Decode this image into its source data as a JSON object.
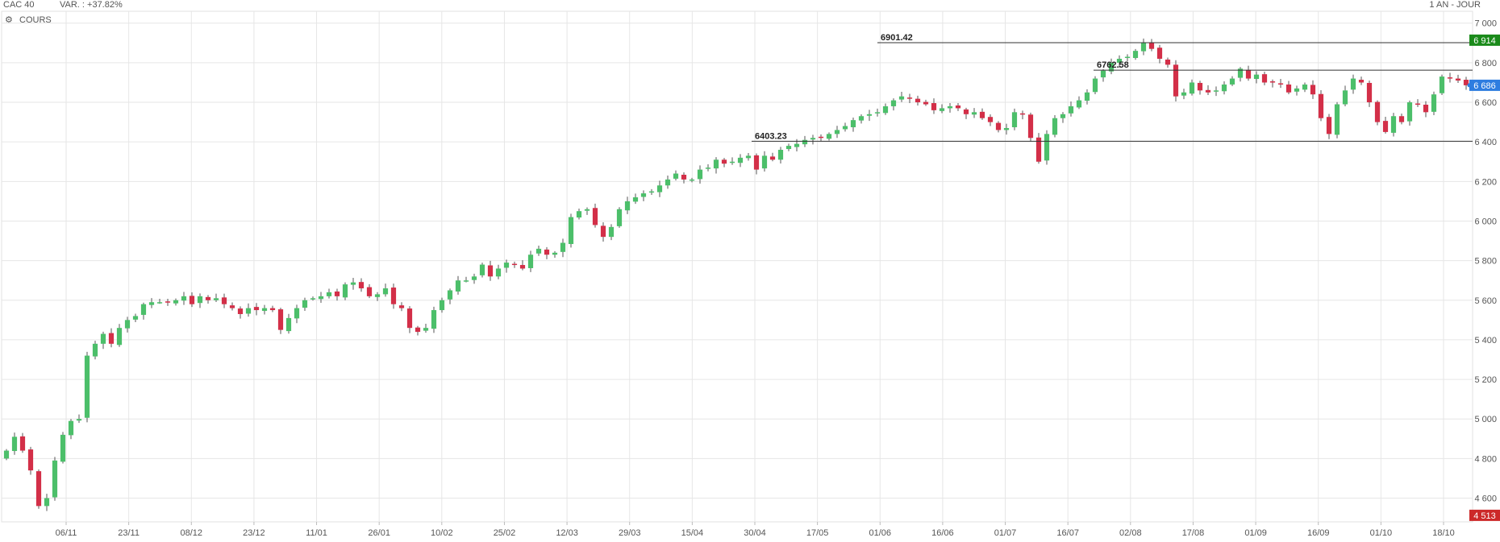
{
  "header": {
    "instrument": "CAC 40",
    "variation": "VAR. : +37.82%",
    "period": "1 AN - JOUR"
  },
  "legend": {
    "label": "COURS",
    "icon": "gear-icon"
  },
  "chart_data": {
    "type": "candlestick",
    "y_range": [
      4480,
      7060
    ],
    "y_ticks": [
      4600,
      4800,
      5000,
      5200,
      5400,
      5600,
      5800,
      6000,
      6200,
      6400,
      6600,
      6800,
      7000
    ],
    "y_tick_labels": [
      "4 600",
      "4 800",
      "5 000",
      "5 200",
      "5 400",
      "5 600",
      "5 800",
      "6 000",
      "6 200",
      "6 400",
      "6 600",
      "6 800",
      "7 000"
    ],
    "x_labels": [
      "06/11",
      "23/11",
      "08/12",
      "23/12",
      "11/01",
      "26/01",
      "10/02",
      "25/02",
      "12/03",
      "29/03",
      "15/04",
      "30/04",
      "17/05",
      "01/06",
      "16/06",
      "01/07",
      "16/07",
      "02/08",
      "17/08",
      "01/09",
      "16/09",
      "01/10",
      "18/10"
    ],
    "grid": true,
    "annotations": [
      {
        "label": "6901.42",
        "value": 6901.42
      },
      {
        "label": "6762.58",
        "value": 6762.58
      },
      {
        "label": "6403.23",
        "value": 6403.23
      }
    ],
    "price_badges": [
      {
        "label": "6 914",
        "value": 6914,
        "color": "#1a8a1a"
      },
      {
        "label": "6 686",
        "value": 6686,
        "color": "#2e7de0"
      },
      {
        "label": "4 513",
        "value": 4513,
        "color": "#cc2929"
      }
    ],
    "up_color": "#4cbf6a",
    "down_color": "#d32f48",
    "closes": [
      4840,
      4910,
      4840,
      4740,
      4560,
      4600,
      4790,
      4920,
      4990,
      5000,
      5320,
      5380,
      5430,
      5380,
      5460,
      5500,
      5520,
      5580,
      5590,
      5590,
      5590,
      5600,
      5620,
      5580,
      5620,
      5600,
      5610,
      5580,
      5560,
      5530,
      5560,
      5550,
      5560,
      5550,
      5450,
      5510,
      5560,
      5600,
      5610,
      5620,
      5640,
      5620,
      5680,
      5690,
      5660,
      5620,
      5630,
      5660,
      5580,
      5560,
      5460,
      5440,
      5460,
      5550,
      5600,
      5650,
      5700,
      5700,
      5720,
      5780,
      5720,
      5760,
      5790,
      5780,
      5760,
      5830,
      5860,
      5830,
      5840,
      5890,
      6020,
      6050,
      6060,
      5980,
      5920,
      5970,
      6060,
      6100,
      6120,
      6140,
      6150,
      6180,
      6210,
      6240,
      6210,
      6210,
      6260,
      6270,
      6310,
      6290,
      6300,
      6320,
      6330,
      6260,
      6330,
      6310,
      6360,
      6380,
      6390,
      6410,
      6420,
      6420,
      6440,
      6460,
      6480,
      6510,
      6530,
      6540,
      6550,
      6580,
      6610,
      6630,
      6620,
      6600,
      6590,
      6560,
      6570,
      6580,
      6570,
      6540,
      6550,
      6520,
      6500,
      6460,
      6470,
      6550,
      6540,
      6420,
      6300,
      6440,
      6520,
      6540,
      6580,
      6610,
      6650,
      6720,
      6760,
      6800,
      6820,
      6830,
      6860,
      6900,
      6870,
      6820,
      6790,
      6630,
      6650,
      6700,
      6660,
      6650,
      6660,
      6690,
      6720,
      6770,
      6720,
      6740,
      6700,
      6700,
      6690,
      6650,
      6670,
      6690,
      6640,
      6520,
      6440,
      6590,
      6660,
      6720,
      6700,
      6600,
      6500,
      6450,
      6530,
      6500,
      6600,
      6590,
      6550,
      6640,
      6730,
      6720,
      6710,
      6686
    ]
  }
}
